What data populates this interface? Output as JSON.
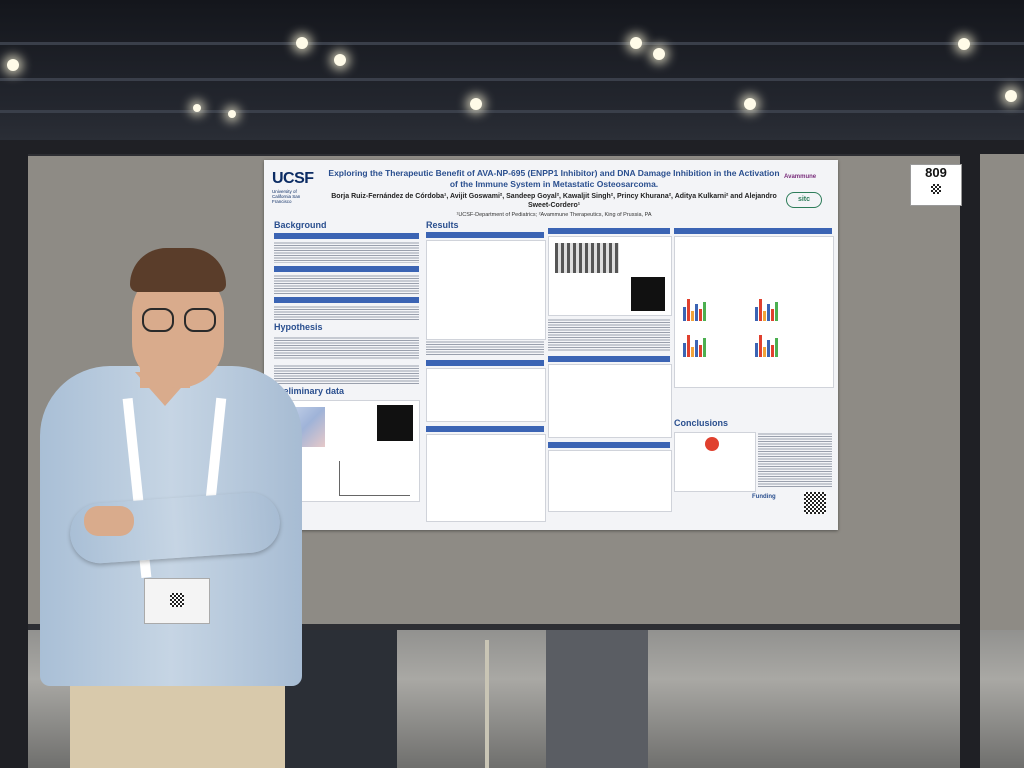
{
  "poster": {
    "title": "Exploring the Therapeutic Benefit of AVA-NP-695 (ENPP1 Inhibitor) and DNA Damage Inhibition in the Activation of the Immune System in Metastatic Osteosarcoma.",
    "authors": "Borja Ruiz-Fernández de Córdoba¹, Avijit Goswami², Sandeep Goyal², Kawaljit Singh², Princy Khurana², Aditya Kulkarni² and Alejandro Sweet-Cordero¹",
    "affiliations": "¹UCSF-Department of Pediatrics; ²Avammune Therapeutics, King of Prussia, PA",
    "logo_left": "UCSF",
    "logo_left_sub": "University of California San Francisco",
    "logo_right": "Avammune",
    "logo_right2": "sitc",
    "sections": {
      "background": "Background",
      "hypothesis": "Hypothesis",
      "preliminary": "Preliminary data",
      "results": "Results",
      "conclusions": "Conclusions",
      "funding": "Funding"
    },
    "board_number": "809"
  },
  "colors": {
    "title_blue": "#2a4f8f",
    "section_bar": "#3b64b4",
    "panel_gray": "#8e8b85",
    "shirt_blue": "#b7cadd"
  },
  "chart_bars": [
    {
      "c": "#3b64b4",
      "h": 0.6
    },
    {
      "c": "#e0402e",
      "h": 0.9
    },
    {
      "c": "#f2a33a",
      "h": 0.4
    },
    {
      "c": "#3b64b4",
      "h": 0.7
    },
    {
      "c": "#e0402e",
      "h": 0.5
    },
    {
      "c": "#4caf50",
      "h": 0.8
    }
  ]
}
